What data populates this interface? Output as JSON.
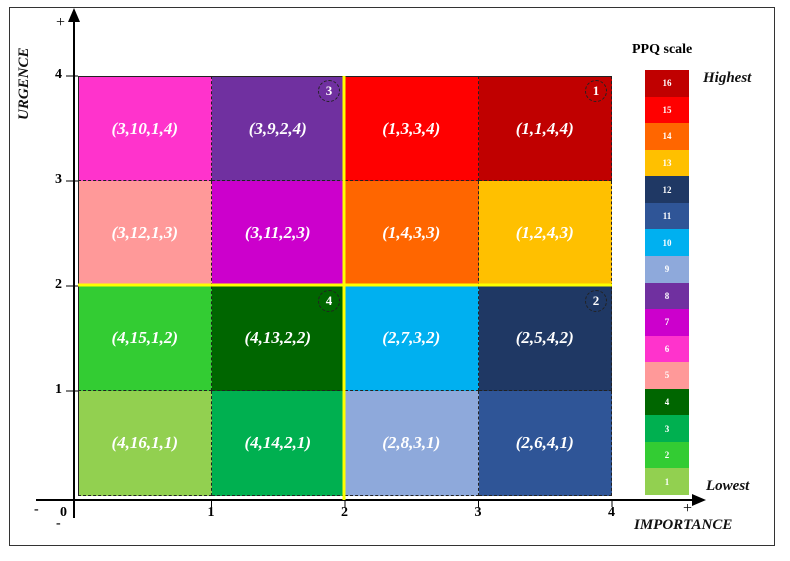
{
  "chart_data": {
    "type": "heatmap",
    "xlabel": "IMPORTANCE",
    "ylabel": "URGENCE",
    "x_ticks": [
      "0",
      "1",
      "2",
      "3",
      "4"
    ],
    "y_ticks": [
      "1",
      "2",
      "3",
      "4"
    ],
    "x_plus": "+",
    "x_minus": "-",
    "y_plus": "+",
    "y_minus": "-",
    "xlim": [
      0,
      4
    ],
    "ylim": [
      0,
      4
    ],
    "cells": [
      {
        "col": 1,
        "row": 4,
        "label": "(3,10,1,4)",
        "color": "#FF33CC"
      },
      {
        "col": 2,
        "row": 4,
        "label": "(3,9,2,4)",
        "color": "#7030A0"
      },
      {
        "col": 3,
        "row": 4,
        "label": "(1,3,3,4)",
        "color": "#FF0000"
      },
      {
        "col": 4,
        "row": 4,
        "label": "(1,1,4,4)",
        "color": "#C00000"
      },
      {
        "col": 1,
        "row": 3,
        "label": "(3,12,1,3)",
        "color": "#FF9999"
      },
      {
        "col": 2,
        "row": 3,
        "label": "(3,11,2,3)",
        "color": "#CC00CC"
      },
      {
        "col": 3,
        "row": 3,
        "label": "(1,4,3,3)",
        "color": "#FF6600"
      },
      {
        "col": 4,
        "row": 3,
        "label": "(1,2,4,3)",
        "color": "#FFC000"
      },
      {
        "col": 1,
        "row": 2,
        "label": "(4,15,1,2)",
        "color": "#33CC33"
      },
      {
        "col": 2,
        "row": 2,
        "label": "(4,13,2,2)",
        "color": "#006600"
      },
      {
        "col": 3,
        "row": 2,
        "label": "(2,7,3,2)",
        "color": "#00B0F0"
      },
      {
        "col": 4,
        "row": 2,
        "label": "(2,5,4,2)",
        "color": "#1F3864"
      },
      {
        "col": 1,
        "row": 1,
        "label": "(4,16,1,1)",
        "color": "#92D050"
      },
      {
        "col": 2,
        "row": 1,
        "label": "(4,14,2,1)",
        "color": "#00B050"
      },
      {
        "col": 3,
        "row": 1,
        "label": "(2,8,3,1)",
        "color": "#8EA9DB"
      },
      {
        "col": 4,
        "row": 1,
        "label": "(2,6,4,1)",
        "color": "#2F5597"
      }
    ],
    "quadrant_markers": [
      {
        "label": "3",
        "col": 2,
        "row": 4
      },
      {
        "label": "1",
        "col": 4,
        "row": 4
      },
      {
        "label": "4",
        "col": 2,
        "row": 2
      },
      {
        "label": "2",
        "col": 4,
        "row": 2
      }
    ],
    "divider_color": "#FFFF00",
    "legend": {
      "title": "PPQ scale",
      "highest": "Highest",
      "lowest": "Lowest",
      "levels": [
        {
          "value": "16",
          "color": "#C00000"
        },
        {
          "value": "15",
          "color": "#FF0000"
        },
        {
          "value": "14",
          "color": "#FF6600"
        },
        {
          "value": "13",
          "color": "#FFC000"
        },
        {
          "value": "12",
          "color": "#1F3864"
        },
        {
          "value": "11",
          "color": "#2F5597"
        },
        {
          "value": "10",
          "color": "#00B0F0"
        },
        {
          "value": "9",
          "color": "#8EA9DB"
        },
        {
          "value": "8",
          "color": "#7030A0"
        },
        {
          "value": "7",
          "color": "#CC00CC"
        },
        {
          "value": "6",
          "color": "#FF33CC"
        },
        {
          "value": "5",
          "color": "#FF9999"
        },
        {
          "value": "4",
          "color": "#006600"
        },
        {
          "value": "3",
          "color": "#00B050"
        },
        {
          "value": "2",
          "color": "#33CC33"
        },
        {
          "value": "1",
          "color": "#92D050"
        }
      ]
    }
  }
}
